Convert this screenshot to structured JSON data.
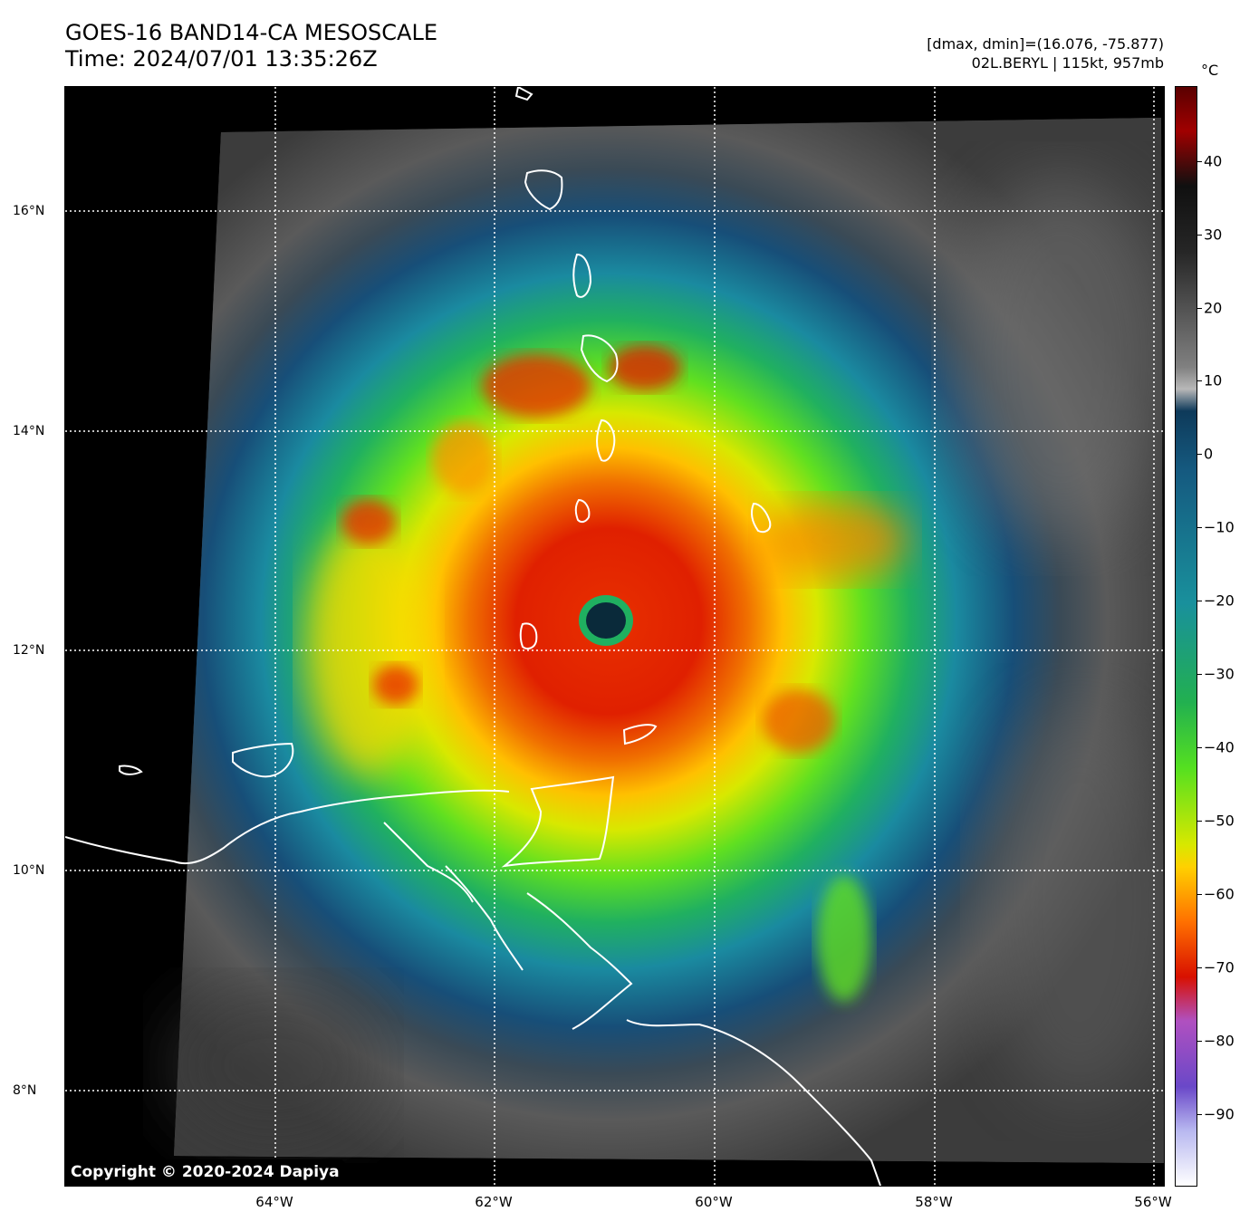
{
  "title": {
    "line1": "GOES-16 BAND14-CA MESOSCALE",
    "line2": "Time: 2024/07/01 13:35:26Z"
  },
  "info": {
    "line1": "[dmax, dmin]=(16.076, -75.877)",
    "line2": "02L.BERYL | 115kt, 957mb"
  },
  "copyright": "Copyright © 2020-2024 Dapiya",
  "axes": {
    "x_ticks": [
      "64°W",
      "62°W",
      "60°W",
      "58°W",
      "56°W"
    ],
    "y_ticks": [
      "16°N",
      "14°N",
      "12°N",
      "10°N",
      "8°N"
    ]
  },
  "colorbar": {
    "unit": "°C",
    "ticks": [
      "40",
      "30",
      "20",
      "10",
      "0",
      "−10",
      "−20",
      "−30",
      "−40",
      "−50",
      "−60",
      "−70",
      "−80",
      "−90"
    ]
  },
  "colors": {
    "eye": "#0a2a3a",
    "core": "#e02000",
    "background_cloud": "#5a5a5a"
  }
}
